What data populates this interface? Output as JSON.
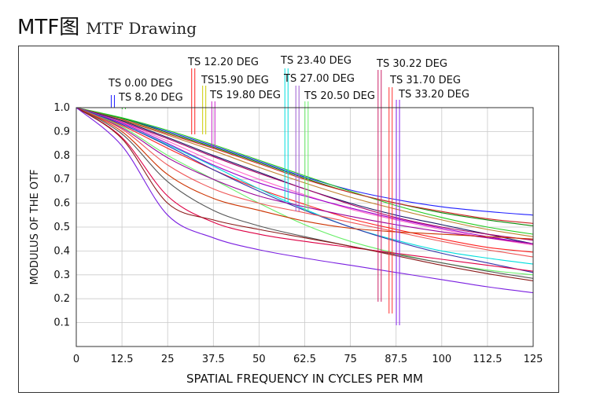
{
  "heading": {
    "main": "MTF图",
    "sub": "MTF Drawing"
  },
  "chart_data": {
    "type": "line",
    "title": "",
    "xlabel": "SPATIAL FREQUENCY IN CYCLES PER MM",
    "ylabel": "MODULUS OF THE OTF",
    "xlim": [
      0,
      125
    ],
    "ylim": [
      0,
      1
    ],
    "grid": true,
    "x_ticks": [
      "0",
      "12.5",
      "25",
      "37.5",
      "50",
      "62.5",
      "75",
      "87.5",
      "100",
      "112.5",
      "125"
    ],
    "y_ticks": [
      "0.1",
      "0.2",
      "0.3",
      "0.4",
      "0.5",
      "0.6",
      "0.7",
      "0.8",
      "0.9",
      "1.0"
    ],
    "x": [
      0,
      12.5,
      25,
      37.5,
      50,
      62.5,
      75,
      87.5,
      100,
      112.5,
      125
    ],
    "legend_entries": [
      {
        "label": "TS 0.00 DEG",
        "color": "#2020ff",
        "freq": 10
      },
      {
        "label": "TS 8.20 DEG",
        "color": "#22cc22",
        "freq": 13
      },
      {
        "label": "TS 12.20 DEG",
        "color": "#ff2020",
        "freq": 32
      },
      {
        "label": "TS15.90 DEG",
        "color": "#cccc00",
        "freq": 35
      },
      {
        "label": "TS 19.80 DEG",
        "color": "#cc22cc",
        "freq": 37.5
      },
      {
        "label": "TS  23.40 DEG",
        "color": "#00dddd",
        "freq": 57.5
      },
      {
        "label": "TS  27.00 DEG",
        "color": "#9b59d0",
        "freq": 60.5
      },
      {
        "label": "TS  20.50 DEG",
        "color": "#66ee66",
        "freq": 63
      },
      {
        "label": "TS 30.22 DEG",
        "color": "#cc2266",
        "freq": 83
      },
      {
        "label": "TS 31.70 DEG",
        "color": "#ff3333",
        "freq": 86
      },
      {
        "label": "TS 33.20 DEG",
        "color": "#8822ee",
        "freq": 88
      }
    ],
    "series": [
      {
        "color": "#2020ff",
        "values": [
          1.0,
          0.955,
          0.9,
          0.84,
          0.775,
          0.71,
          0.655,
          0.615,
          0.585,
          0.565,
          0.55
        ]
      },
      {
        "color": "#0a8a0a",
        "values": [
          1.0,
          0.955,
          0.895,
          0.835,
          0.77,
          0.705,
          0.645,
          0.6,
          0.56,
          0.53,
          0.505
        ]
      },
      {
        "color": "#22cc22",
        "values": [
          1.0,
          0.958,
          0.905,
          0.845,
          0.78,
          0.715,
          0.65,
          0.59,
          0.54,
          0.5,
          0.47
        ]
      },
      {
        "color": "#cc2222",
        "values": [
          1.0,
          0.95,
          0.89,
          0.83,
          0.765,
          0.7,
          0.645,
          0.6,
          0.565,
          0.535,
          0.515
        ]
      },
      {
        "color": "#c08030",
        "values": [
          1.0,
          0.948,
          0.885,
          0.82,
          0.75,
          0.685,
          0.625,
          0.575,
          0.53,
          0.49,
          0.46
        ]
      },
      {
        "color": "#1a1a66",
        "values": [
          1.0,
          0.945,
          0.875,
          0.8,
          0.73,
          0.66,
          0.6,
          0.55,
          0.51,
          0.47,
          0.43
        ]
      },
      {
        "color": "#aa0066",
        "values": [
          1.0,
          0.94,
          0.87,
          0.795,
          0.725,
          0.66,
          0.595,
          0.54,
          0.5,
          0.47,
          0.445
        ]
      },
      {
        "color": "#ff66cc",
        "values": [
          1.0,
          0.938,
          0.86,
          0.775,
          0.7,
          0.635,
          0.575,
          0.53,
          0.49,
          0.455,
          0.425
        ]
      },
      {
        "color": "#9900cc",
        "values": [
          1.0,
          0.935,
          0.85,
          0.76,
          0.685,
          0.63,
          0.58,
          0.535,
          0.495,
          0.46,
          0.43
        ]
      },
      {
        "color": "#ff2020",
        "values": [
          1.0,
          0.925,
          0.83,
          0.74,
          0.66,
          0.595,
          0.535,
          0.49,
          0.45,
          0.415,
          0.395
        ]
      },
      {
        "color": "#00dddd",
        "values": [
          1.0,
          0.93,
          0.845,
          0.755,
          0.66,
          0.575,
          0.5,
          0.445,
          0.4,
          0.37,
          0.345
        ]
      },
      {
        "color": "#3333aa",
        "values": [
          1.0,
          0.93,
          0.84,
          0.74,
          0.65,
          0.57,
          0.5,
          0.44,
          0.39,
          0.35,
          0.31
        ]
      },
      {
        "color": "#66ee66",
        "values": [
          1.0,
          0.92,
          0.8,
          0.7,
          0.6,
          0.51,
          0.44,
          0.39,
          0.35,
          0.32,
          0.3
        ]
      },
      {
        "color": "#990099",
        "values": [
          1.0,
          0.915,
          0.79,
          0.7,
          0.63,
          0.585,
          0.545,
          0.51,
          0.48,
          0.455,
          0.43
        ]
      },
      {
        "color": "#ee5555",
        "values": [
          1.0,
          0.91,
          0.76,
          0.66,
          0.6,
          0.56,
          0.52,
          0.48,
          0.44,
          0.405,
          0.375
        ]
      },
      {
        "color": "#cc3300",
        "values": [
          1.0,
          0.9,
          0.72,
          0.62,
          0.57,
          0.525,
          0.495,
          0.48,
          0.47,
          0.46,
          0.45
        ]
      },
      {
        "color": "#555555",
        "values": [
          1.0,
          0.89,
          0.69,
          0.57,
          0.505,
          0.46,
          0.42,
          0.385,
          0.35,
          0.315,
          0.285
        ]
      },
      {
        "color": "#dd0044",
        "values": [
          1.0,
          0.875,
          0.63,
          0.52,
          0.47,
          0.44,
          0.415,
          0.39,
          0.365,
          0.34,
          0.315
        ]
      },
      {
        "color": "#8b1a1a",
        "values": [
          1.0,
          0.87,
          0.6,
          0.53,
          0.49,
          0.455,
          0.42,
          0.38,
          0.34,
          0.305,
          0.275
        ]
      },
      {
        "color": "#7a1fe0",
        "values": [
          1.0,
          0.84,
          0.55,
          0.455,
          0.405,
          0.37,
          0.34,
          0.31,
          0.28,
          0.25,
          0.225
        ]
      }
    ]
  }
}
